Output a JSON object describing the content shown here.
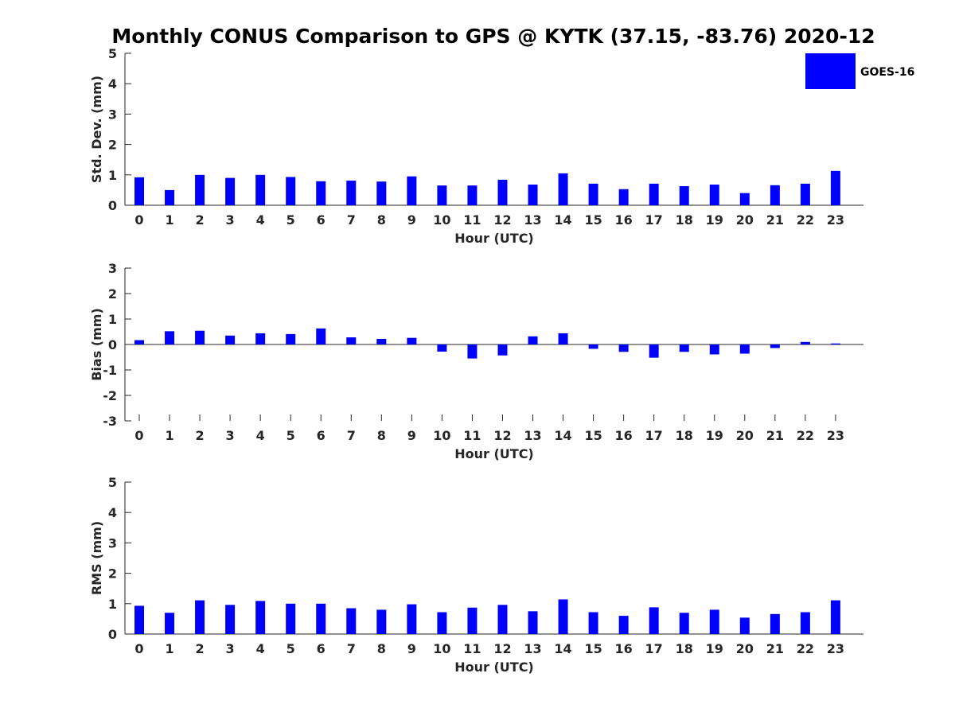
{
  "chart_data": {
    "title": "Monthly CONUS Comparison to GPS @ KYTK (37.15, -83.76) 2020-12",
    "legend": {
      "label": "GOES-16",
      "color": "#0000ff",
      "placement": "top-right"
    },
    "bar_color": "#0000ff",
    "grid": false,
    "panels": [
      {
        "type": "bar",
        "ylabel": "Std. Dev. (mm)",
        "xlabel": "Hour (UTC)",
        "ylim": [
          0,
          5
        ],
        "yticks": [
          0,
          1,
          2,
          3,
          4,
          5
        ],
        "categories": [
          "0",
          "1",
          "2",
          "3",
          "4",
          "5",
          "6",
          "7",
          "8",
          "9",
          "10",
          "11",
          "12",
          "13",
          "14",
          "15",
          "16",
          "17",
          "18",
          "19",
          "20",
          "21",
          "22",
          "23"
        ],
        "series": [
          {
            "name": "GOES-16",
            "values": [
              0.92,
              0.5,
              1.0,
              0.9,
              1.0,
              0.93,
              0.79,
              0.81,
              0.78,
              0.95,
              0.65,
              0.65,
              0.84,
              0.68,
              1.05,
              0.71,
              0.53,
              0.71,
              0.63,
              0.68,
              0.4,
              0.66,
              0.71,
              1.13
            ]
          }
        ]
      },
      {
        "type": "bar",
        "ylabel": "Bias (mm)",
        "xlabel": "Hour (UTC)",
        "ylim": [
          -3,
          3
        ],
        "yticks": [
          -3,
          -2,
          -1,
          0,
          1,
          2,
          3
        ],
        "categories": [
          "0",
          "1",
          "2",
          "3",
          "4",
          "5",
          "6",
          "7",
          "8",
          "9",
          "10",
          "11",
          "12",
          "13",
          "14",
          "15",
          "16",
          "17",
          "18",
          "19",
          "20",
          "21",
          "22",
          "23"
        ],
        "series": [
          {
            "name": "GOES-16",
            "values": [
              0.17,
              0.52,
              0.54,
              0.35,
              0.44,
              0.41,
              0.63,
              0.28,
              0.22,
              0.26,
              -0.28,
              -0.55,
              -0.43,
              0.32,
              0.44,
              -0.17,
              -0.29,
              -0.52,
              -0.29,
              -0.39,
              -0.36,
              -0.14,
              0.1,
              0.04
            ]
          }
        ]
      },
      {
        "type": "bar",
        "ylabel": "RMS (mm)",
        "xlabel": "Hour (UTC)",
        "ylim": [
          0,
          5
        ],
        "yticks": [
          0,
          1,
          2,
          3,
          4,
          5
        ],
        "categories": [
          "0",
          "1",
          "2",
          "3",
          "4",
          "5",
          "6",
          "7",
          "8",
          "9",
          "10",
          "11",
          "12",
          "13",
          "14",
          "15",
          "16",
          "17",
          "18",
          "19",
          "20",
          "21",
          "22",
          "23"
        ],
        "series": [
          {
            "name": "GOES-16",
            "values": [
              0.93,
              0.7,
              1.11,
              0.96,
              1.09,
              1.0,
              1.0,
              0.85,
              0.8,
              0.98,
              0.72,
              0.87,
              0.96,
              0.75,
              1.14,
              0.72,
              0.6,
              0.88,
              0.7,
              0.8,
              0.54,
              0.66,
              0.72,
              1.11
            ]
          }
        ]
      }
    ]
  }
}
